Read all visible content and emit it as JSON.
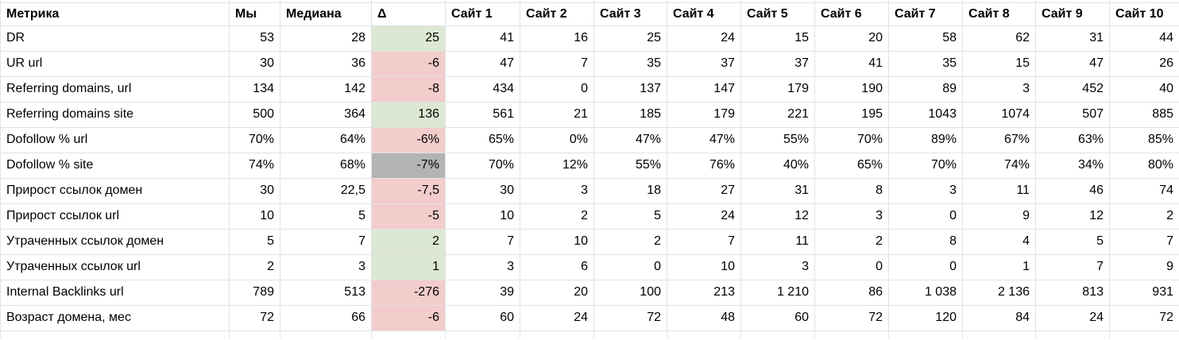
{
  "colors": {
    "delta_positive_bg": "#dce8d3",
    "delta_negative_bg": "#f3cccc",
    "delta_neutral_bg": "#b3b3b3",
    "gridline": "#e2e2e2",
    "text": "#000000",
    "background": "#ffffff"
  },
  "table": {
    "columns": [
      "Метрика",
      "Мы",
      "Медиана",
      "Δ",
      "Сайт 1",
      "Сайт 2",
      "Сайт 3",
      "Сайт 4",
      "Сайт 5",
      "Сайт 6",
      "Сайт 7",
      "Сайт 8",
      "Сайт 9",
      "Сайт 10"
    ],
    "rows": [
      {
        "metric": "DR",
        "we": "53",
        "median": "28",
        "delta": "25",
        "delta_state": "positive",
        "sites": [
          "41",
          "16",
          "25",
          "24",
          "15",
          "20",
          "58",
          "62",
          "31",
          "44"
        ]
      },
      {
        "metric": "UR url",
        "we": "30",
        "median": "36",
        "delta": "-6",
        "delta_state": "negative",
        "sites": [
          "47",
          "7",
          "35",
          "37",
          "37",
          "41",
          "35",
          "15",
          "47",
          "26"
        ]
      },
      {
        "metric": "Referring domains, url",
        "we": "134",
        "median": "142",
        "delta": "-8",
        "delta_state": "negative",
        "sites": [
          "434",
          "0",
          "137",
          "147",
          "179",
          "190",
          "89",
          "3",
          "452",
          "40"
        ]
      },
      {
        "metric": "Referring domains site",
        "we": "500",
        "median": "364",
        "delta": "136",
        "delta_state": "positive",
        "sites": [
          "561",
          "21",
          "185",
          "179",
          "221",
          "195",
          "1043",
          "1074",
          "507",
          "885"
        ]
      },
      {
        "metric": "Dofollow % url",
        "we": "70%",
        "median": "64%",
        "delta": "-6%",
        "delta_state": "negative",
        "sites": [
          "65%",
          "0%",
          "47%",
          "47%",
          "55%",
          "70%",
          "89%",
          "67%",
          "63%",
          "85%"
        ]
      },
      {
        "metric": "Dofollow % site",
        "we": "74%",
        "median": "68%",
        "delta": "-7%",
        "delta_state": "neutral",
        "sites": [
          "70%",
          "12%",
          "55%",
          "76%",
          "40%",
          "65%",
          "70%",
          "74%",
          "34%",
          "80%"
        ]
      },
      {
        "metric": "Прирост ссылок домен",
        "we": "30",
        "median": "22,5",
        "delta": "-7,5",
        "delta_state": "negative",
        "sites": [
          "30",
          "3",
          "18",
          "27",
          "31",
          "8",
          "3",
          "11",
          "46",
          "74"
        ]
      },
      {
        "metric": "Прирост ссылок url",
        "we": "10",
        "median": "5",
        "delta": "-5",
        "delta_state": "negative",
        "sites": [
          "10",
          "2",
          "5",
          "24",
          "12",
          "3",
          "0",
          "9",
          "12",
          "2"
        ]
      },
      {
        "metric": "Утраченных ссылок домен",
        "we": "5",
        "median": "7",
        "delta": "2",
        "delta_state": "positive",
        "sites": [
          "7",
          "10",
          "2",
          "7",
          "11",
          "2",
          "8",
          "4",
          "5",
          "7"
        ]
      },
      {
        "metric": "Утраченных ссылок url",
        "we": "2",
        "median": "3",
        "delta": "1",
        "delta_state": "positive",
        "sites": [
          "3",
          "6",
          "0",
          "10",
          "3",
          "0",
          "0",
          "1",
          "7",
          "9"
        ]
      },
      {
        "metric": "Internal Backlinks url",
        "we": "789",
        "median": "513",
        "delta": "-276",
        "delta_state": "negative",
        "sites": [
          "39",
          "20",
          "100",
          "213",
          "1 210",
          "86",
          "1 038",
          "2 136",
          "813",
          "931"
        ]
      },
      {
        "metric": "Возраст домена, мес",
        "we": "72",
        "median": "66",
        "delta": "-6",
        "delta_state": "negative",
        "sites": [
          "60",
          "24",
          "72",
          "48",
          "60",
          "72",
          "120",
          "84",
          "24",
          "72"
        ]
      }
    ]
  }
}
